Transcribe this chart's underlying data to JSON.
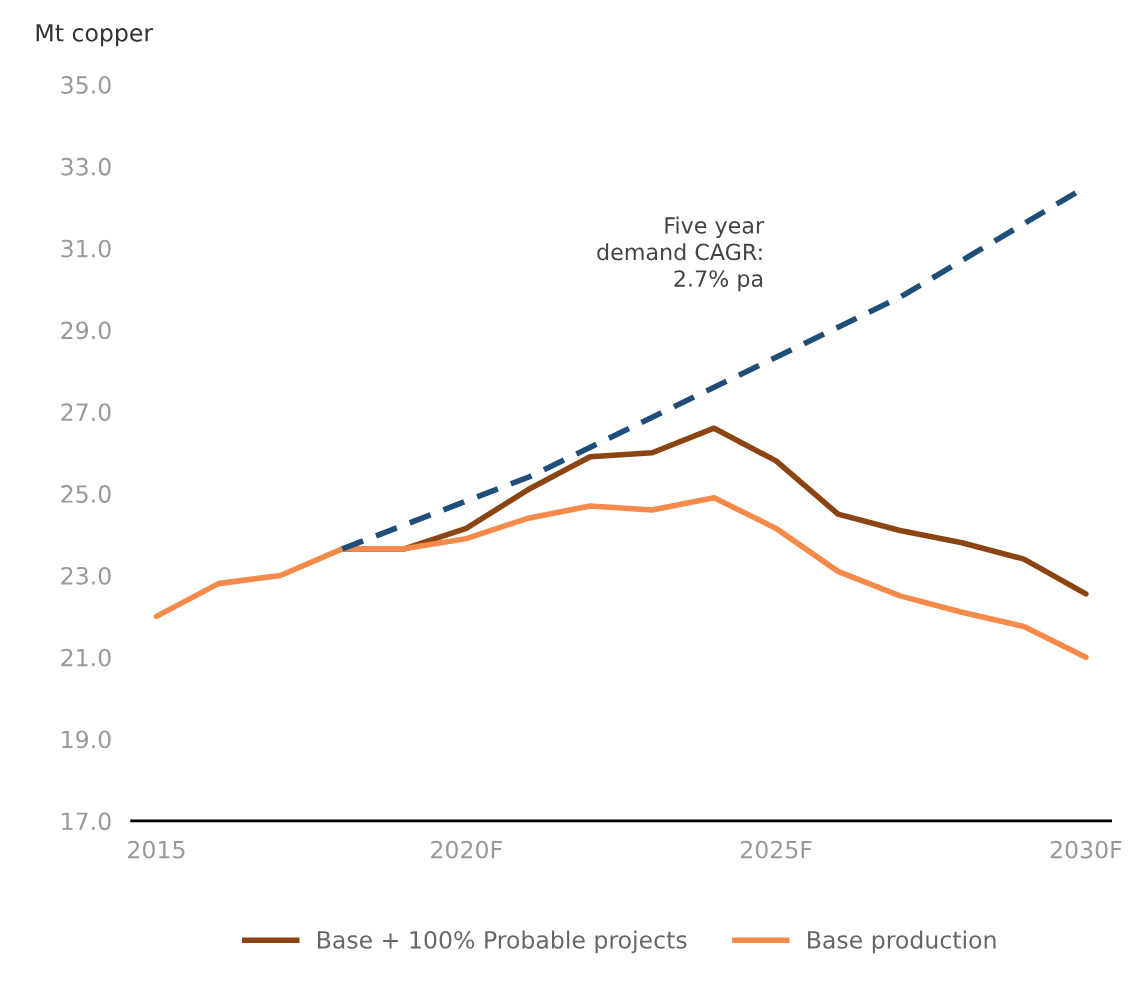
{
  "chart_data": {
    "type": "line",
    "ylabel": "Mt copper",
    "x": [
      2015,
      2016,
      2017,
      2018,
      2019,
      2020,
      2021,
      2022,
      2023,
      2024,
      2025,
      2026,
      2027,
      2028,
      2029,
      2030
    ],
    "series": [
      {
        "name": "Base + 100% Probable projects",
        "color": "#8b4513",
        "values": [
          null,
          null,
          null,
          23.65,
          23.65,
          24.15,
          25.1,
          25.9,
          26.0,
          26.6,
          25.8,
          24.5,
          24.1,
          23.8,
          23.4,
          22.55
        ]
      },
      {
        "name": "Base production",
        "color": "#f58a4b",
        "values": [
          22.0,
          22.8,
          23.0,
          23.65,
          23.65,
          23.9,
          24.4,
          24.7,
          24.6,
          24.9,
          24.15,
          23.1,
          22.5,
          22.1,
          21.75,
          21.0
        ]
      },
      {
        "color": "#1f4e79",
        "line_style": "dashed",
        "x": [
          2018,
          2021,
          2024,
          2027,
          2030
        ],
        "values": [
          23.65,
          25.4,
          27.6,
          29.8,
          32.5
        ]
      }
    ],
    "annotations": [
      "Five year\ndemand CAGR:\n2.7% pa"
    ],
    "xlim": [
      2014.6,
      2030.4
    ],
    "xticks": [
      {
        "value": 2015,
        "label": "2015"
      },
      {
        "value": 2020,
        "label": "2020F"
      },
      {
        "value": 2025,
        "label": "2025F"
      },
      {
        "value": 2030,
        "label": "2030F"
      }
    ],
    "ylim": [
      17,
      35
    ],
    "yticks": [
      {
        "value": 17,
        "label": "17.0"
      },
      {
        "value": 19,
        "label": "19.0"
      },
      {
        "value": 21,
        "label": "21.0"
      },
      {
        "value": 23,
        "label": "23.0"
      },
      {
        "value": 25,
        "label": "25.0"
      },
      {
        "value": 27,
        "label": "27.0"
      },
      {
        "value": 29,
        "label": "29.0"
      },
      {
        "value": 31,
        "label": "31.0"
      },
      {
        "value": 33,
        "label": "33.0"
      },
      {
        "value": 35,
        "label": "35.0"
      }
    ],
    "grid": false,
    "legend": "bottom",
    "line_style": "solid"
  }
}
